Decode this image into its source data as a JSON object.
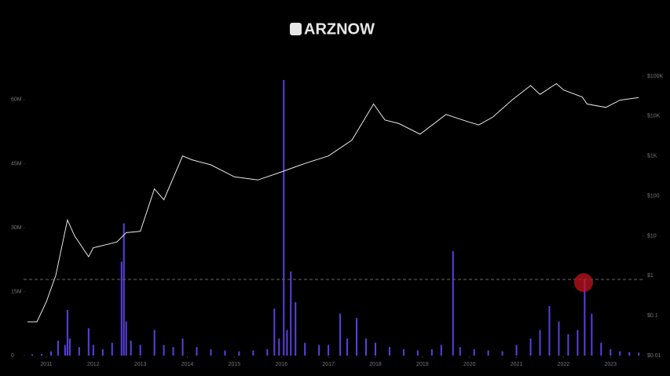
{
  "logo": "ARZNOW",
  "chart_data": {
    "type": "dual",
    "xlim": [
      2010.6,
      2023.63
    ],
    "xticks": [
      2011,
      2012,
      2013,
      2014,
      2015,
      2016,
      2017,
      2018,
      2019,
      2020,
      2021,
      2022,
      2023
    ],
    "ylim": [
      0,
      65500000
    ],
    "yticks": [
      0,
      {
        "value": 15000000,
        "label": "15M"
      },
      {
        "value": 30000000,
        "label": "30M"
      },
      {
        "value": 45000000,
        "label": "45M"
      },
      {
        "value": 60000000,
        "label": "60M"
      }
    ],
    "y2lim": [
      0.01,
      100000
    ],
    "y2log": true,
    "y2ticks": [
      {
        "value": 0.01,
        "label": "$0.01"
      },
      {
        "value": 0.1,
        "label": "$0.1"
      },
      {
        "value": 1,
        "label": "$1"
      },
      {
        "value": 10,
        "label": "$10"
      },
      {
        "value": 100,
        "label": "$100"
      },
      {
        "value": 1000,
        "label": "$1K"
      },
      {
        "value": 10000,
        "label": "$10K"
      },
      {
        "value": 100000,
        "label": "$100K"
      }
    ],
    "series": [
      {
        "type": "bar",
        "color": "#5b3fe0",
        "axis": "y",
        "x": [
          2010.7,
          2010.9,
          2011.1,
          2011.25,
          2011.4,
          2011.45,
          2011.5,
          2011.7,
          2011.9,
          2012.0,
          2012.2,
          2012.4,
          2012.6,
          2012.65,
          2012.7,
          2012.8,
          2013.0,
          2013.3,
          2013.5,
          2013.7,
          2013.9,
          2014.2,
          2014.5,
          2014.8,
          2015.1,
          2015.4,
          2015.7,
          2015.85,
          2015.95,
          2016.05,
          2016.12,
          2016.2,
          2016.3,
          2016.5,
          2016.8,
          2017.0,
          2017.25,
          2017.4,
          2017.6,
          2017.8,
          2018.0,
          2018.3,
          2018.6,
          2018.9,
          2019.2,
          2019.4,
          2019.65,
          2019.8,
          2020.1,
          2020.4,
          2020.7,
          2021.0,
          2021.3,
          2021.5,
          2021.7,
          2021.9,
          2022.1,
          2022.3,
          2022.45,
          2022.6,
          2022.8,
          2023.0,
          2023.2,
          2023.4,
          2023.6
        ],
        "values": [
          300000,
          400000,
          1000000,
          3500000,
          2500000,
          10700000,
          4000000,
          2000000,
          6400000,
          2500000,
          1500000,
          3000000,
          22000000,
          31000000,
          8000000,
          3500000,
          2500000,
          6000000,
          2500000,
          2000000,
          4000000,
          2000000,
          1500000,
          1200000,
          1000000,
          1200000,
          1500000,
          11000000,
          4000000,
          64600000,
          6000000,
          19700000,
          12500000,
          3000000,
          2500000,
          2500000,
          9800000,
          4000000,
          8800000,
          4000000,
          3000000,
          2000000,
          1500000,
          1200000,
          1500000,
          2500000,
          24500000,
          2000000,
          1500000,
          1200000,
          1000000,
          2500000,
          4000000,
          6000000,
          11600000,
          8000000,
          5000000,
          6000000,
          18000000,
          9800000,
          3000000,
          1500000,
          1000000,
          800000,
          700000
        ]
      },
      {
        "type": "line",
        "color": "#e8e8e8",
        "axis": "y2",
        "x": [
          2010.6,
          2010.8,
          2011.0,
          2011.2,
          2011.45,
          2011.6,
          2011.9,
          2012.0,
          2012.5,
          2012.7,
          2013.0,
          2013.3,
          2013.5,
          2013.9,
          2014.1,
          2014.5,
          2015.0,
          2015.5,
          2016.0,
          2016.5,
          2017.0,
          2017.5,
          2017.96,
          2018.2,
          2018.5,
          2018.95,
          2019.5,
          2020.0,
          2020.2,
          2020.5,
          2020.9,
          2021.3,
          2021.5,
          2021.85,
          2022.0,
          2022.4,
          2022.5,
          2022.9,
          2023.2,
          2023.6
        ],
        "values": [
          0.07,
          0.07,
          0.22,
          1,
          25,
          10,
          3,
          5,
          7,
          12,
          13,
          150,
          80,
          1000,
          800,
          600,
          300,
          250,
          400,
          650,
          1000,
          2500,
          20000,
          8000,
          6500,
          3500,
          11000,
          7000,
          6000,
          9500,
          25000,
          58000,
          35000,
          65000,
          45000,
          30000,
          20000,
          16500,
          25000,
          29000
        ]
      }
    ]
  }
}
